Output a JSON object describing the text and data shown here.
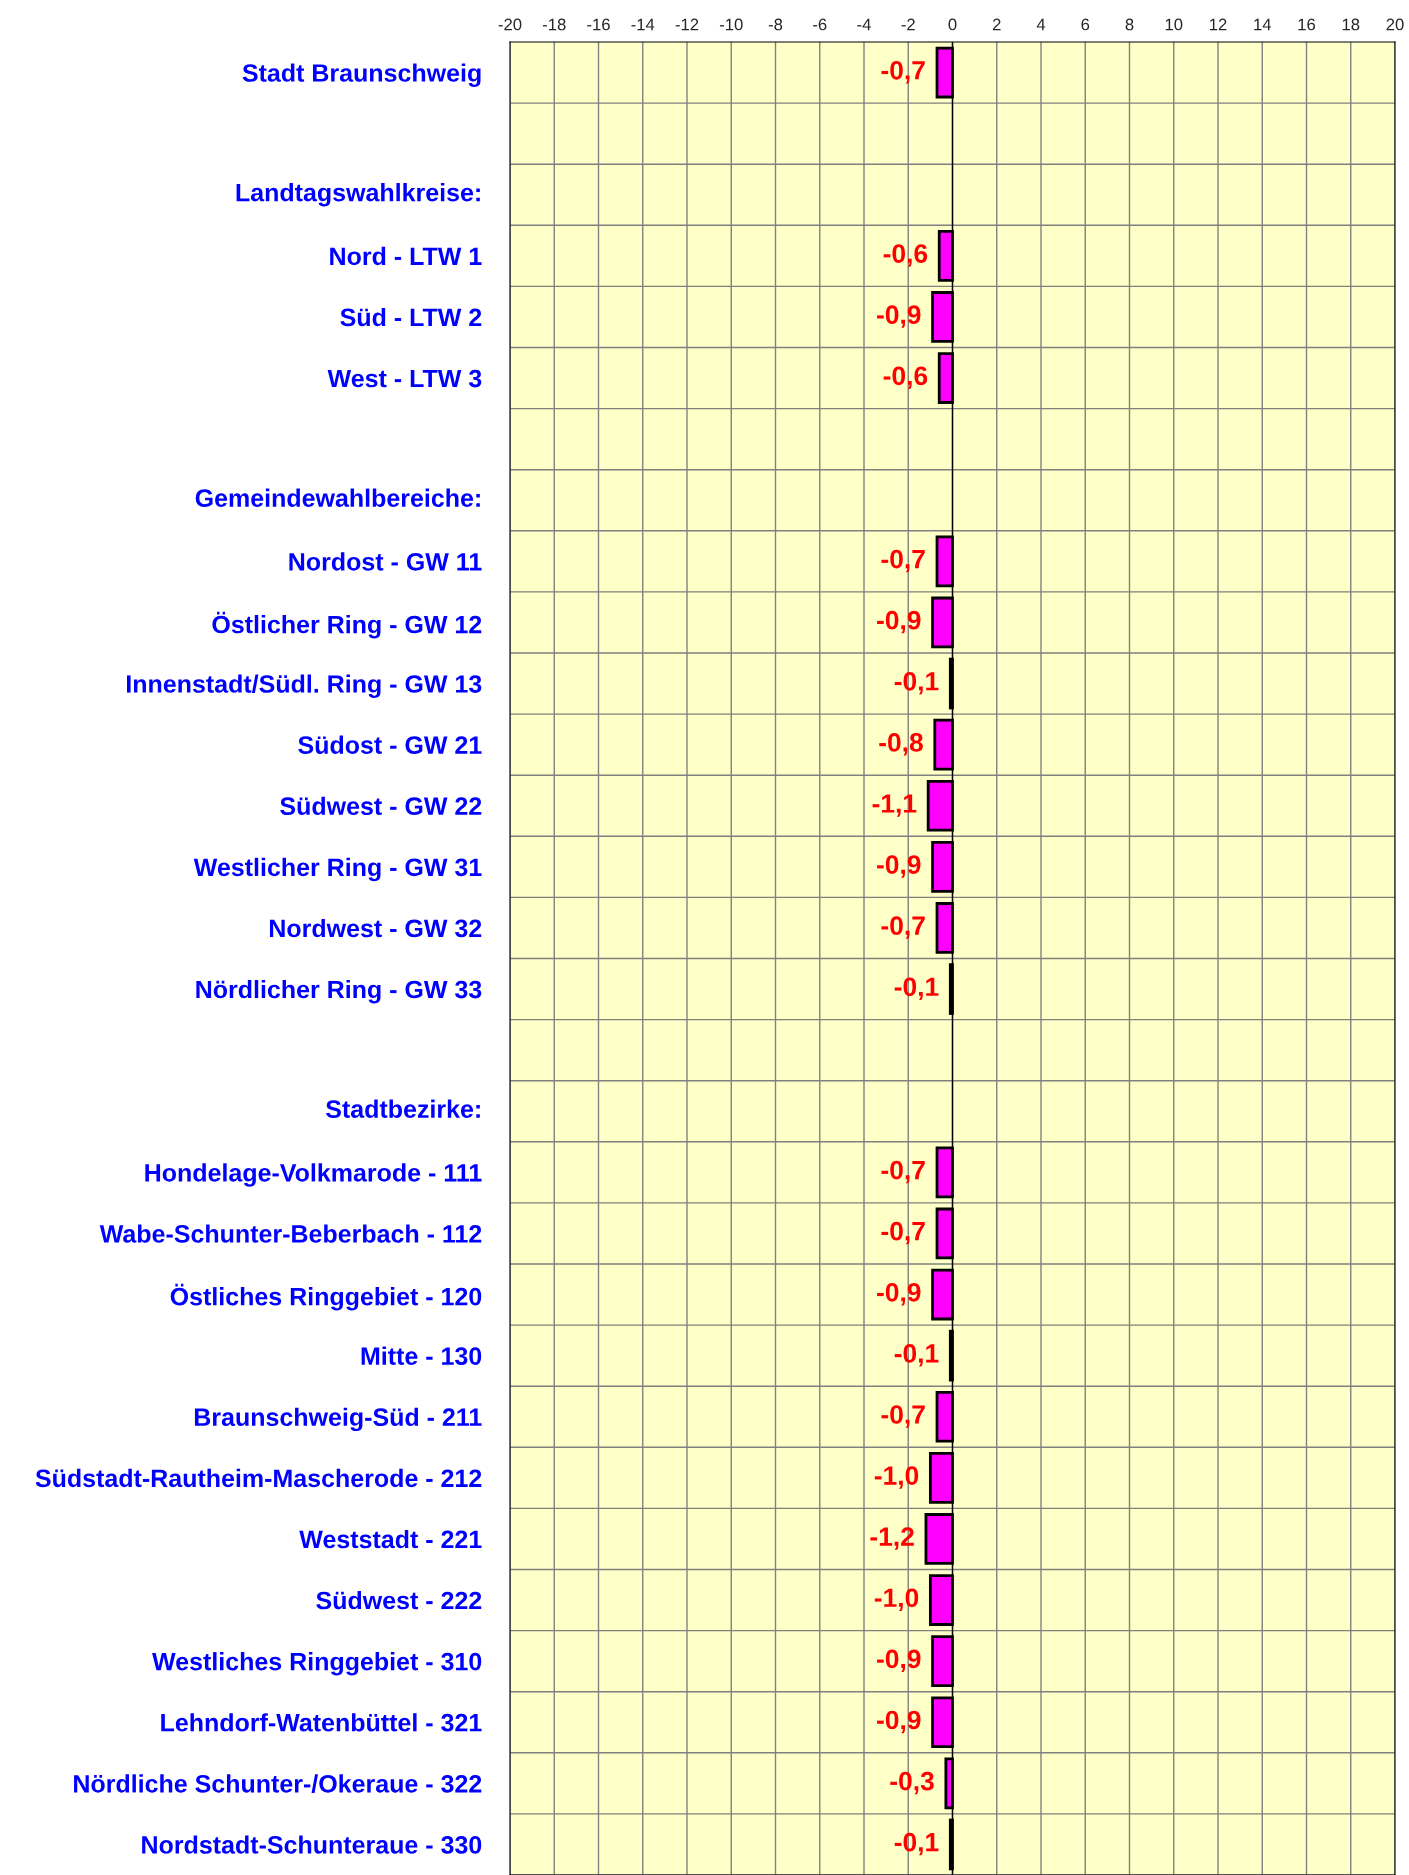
{
  "chart_data": {
    "type": "bar",
    "orientation": "horizontal",
    "categories": [
      "Stadt Braunschweig",
      null,
      null,
      "Nord - LTW 1",
      "Süd - LTW 2",
      "West - LTW 3",
      null,
      null,
      "Nordost - GW 11",
      "Östlicher Ring - GW 12",
      "Innenstadt/Südl. Ring - GW 13",
      "Südost - GW 21",
      "Südwest - GW 22",
      "Westlicher Ring - GW 31",
      "Nordwest - GW 32",
      "Nördlicher Ring - GW 33",
      null,
      null,
      "Hondelage-Volkmarode - 111",
      "Wabe-Schunter-Beberbach - 112",
      "Östliches Ringgebiet - 120",
      "Mitte - 130",
      "Braunschweig-Süd - 211",
      "Südstadt-Rautheim-Mascherode - 212",
      "Weststadt - 221",
      "Südwest - 222",
      "Westliches Ringgebiet - 310",
      "Lehndorf-Watenbüttel - 321",
      "Nördliche Schunter-/Okeraue - 322",
      "Nordstadt-Schunteraue - 330"
    ],
    "values": [
      -0.7,
      null,
      null,
      -0.6,
      -0.9,
      -0.6,
      null,
      null,
      -0.7,
      -0.9,
      -0.1,
      -0.8,
      -1.1,
      -0.9,
      -0.7,
      -0.1,
      null,
      null,
      -0.7,
      -0.7,
      -0.9,
      -0.1,
      -0.7,
      -1.0,
      -1.2,
      -1.0,
      -0.9,
      -0.9,
      -0.3,
      -0.1
    ],
    "value_labels": [
      "-0,7",
      null,
      null,
      "-0,6",
      "-0,9",
      "-0,6",
      null,
      null,
      "-0,7",
      "-0,9",
      "-0,1",
      "-0,8",
      "-1,1",
      "-0,9",
      "-0,7",
      "-0,1",
      null,
      null,
      "-0,7",
      "-0,7",
      "-0,9",
      "-0,1",
      "-0,7",
      "-1,0",
      "-1,2",
      "-1,0",
      "-0,9",
      "-0,9",
      "-0,3",
      "-0,1"
    ],
    "color": "#ff00ff",
    "xlim": [
      -20,
      20
    ],
    "xticks": [
      -20,
      -18,
      -16,
      -14,
      -12,
      -10,
      -8,
      -6,
      -4,
      -2,
      0,
      2,
      4,
      6,
      8,
      10,
      12,
      14,
      16,
      18,
      20
    ],
    "grid": true,
    "annotations": [
      "Landtagswahlkreise:",
      "Gemeindewahlbereiche:",
      "Stadtbezirke:"
    ]
  }
}
